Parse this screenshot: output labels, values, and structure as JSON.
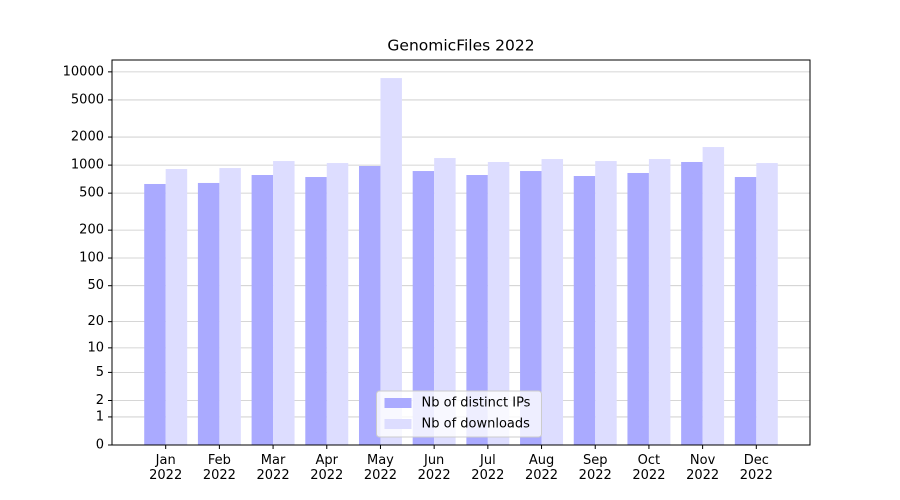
{
  "chart_data": {
    "type": "bar",
    "title": "GenomicFiles 2022",
    "categories": [
      "Jan\n2022",
      "Feb\n2022",
      "Mar\n2022",
      "Apr\n2022",
      "May\n2022",
      "Jun\n2022",
      "Jul\n2022",
      "Aug\n2022",
      "Sep\n2022",
      "Oct\n2022",
      "Nov\n2022",
      "Dec\n2022"
    ],
    "series": [
      {
        "name": "Nb of distinct IPs",
        "color": "#aaaaff",
        "values": [
          627,
          643,
          783,
          745,
          978,
          864,
          783,
          864,
          764,
          823,
          1080,
          745
        ]
      },
      {
        "name": "Nb of downloads",
        "color": "#ddddff",
        "values": [
          908,
          930,
          1106,
          1052,
          8580,
          1191,
          1080,
          1162,
          1106,
          1162,
          1563,
          1052
        ]
      }
    ],
    "y_scale": "log1p",
    "ylim": [
      0,
      13400
    ],
    "yticks": [
      0,
      1,
      2,
      5,
      10,
      20,
      50,
      100,
      200,
      500,
      1000,
      2000,
      5000,
      10000
    ],
    "grid": true,
    "legend": "lower center"
  }
}
